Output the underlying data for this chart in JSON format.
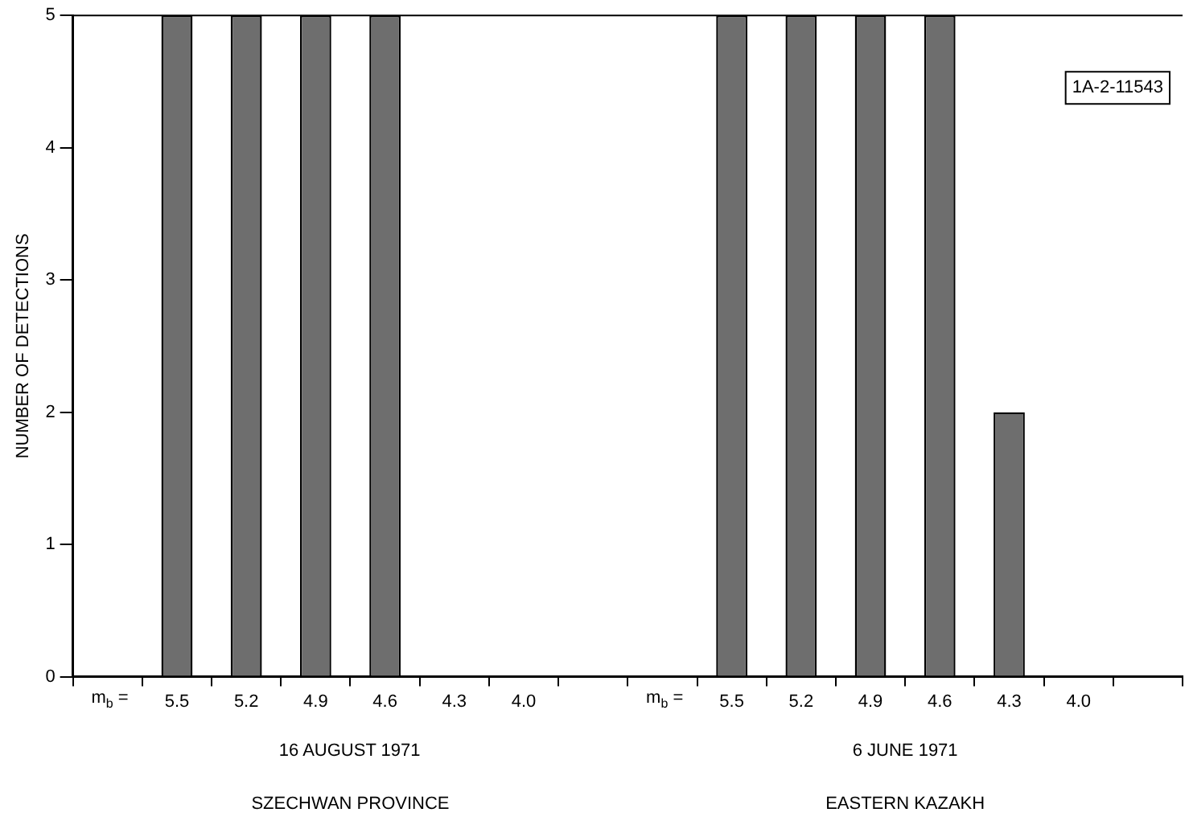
{
  "chart_data": {
    "type": "bar",
    "ylabel": "NUMBER OF DETECTIONS",
    "categories": [
      null,
      "5.5",
      "5.2",
      "4.9",
      "4.6",
      "4.3",
      "4.0",
      null,
      null,
      "5.5",
      "5.2",
      "4.9",
      "4.6",
      "4.3",
      "4.0",
      null
    ],
    "values": [
      null,
      5,
      5,
      5,
      5,
      0,
      0,
      null,
      null,
      5,
      5,
      5,
      5,
      2,
      0,
      null
    ],
    "color": "#6e6e6e",
    "ylim": [
      0,
      5
    ],
    "yticks": [
      0,
      1,
      2,
      3,
      4,
      5
    ],
    "grid": false,
    "legend": false,
    "annotations": [
      "m$_{b}$ =",
      "m$_{b}$ =",
      "16 AUGUST 1971",
      "SZECHWAN PROVINCE",
      "6 JUNE 1971",
      "EASTERN KAZAKH",
      "1A-2-11543"
    ]
  }
}
